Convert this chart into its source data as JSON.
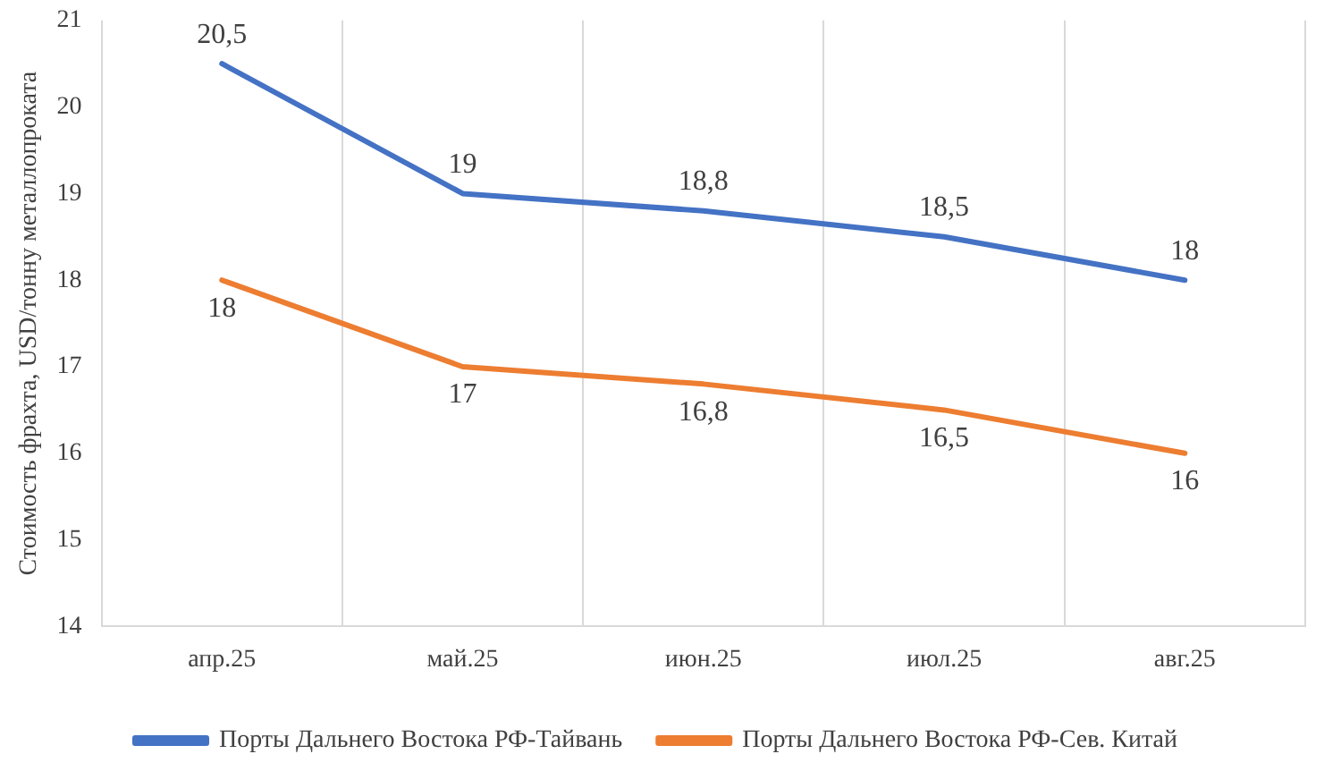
{
  "chart_data": {
    "type": "line",
    "ylabel": "Стоимость фрахта, USD/тонну металлопроката",
    "categories": [
      "апр.25",
      "май.25",
      "июн.25",
      "июл.25",
      "авг.25"
    ],
    "series": [
      {
        "name": "Порты Дальнего Востока РФ-Тайвань",
        "color": "#4472c4",
        "values": [
          20.5,
          19,
          18.8,
          18.5,
          18
        ],
        "value_labels": [
          "20,5",
          "19",
          "18,8",
          "18,5",
          "18"
        ]
      },
      {
        "name": "Порты Дальнего Востока РФ-Сев. Китай",
        "color": "#ed7d31",
        "values": [
          18,
          17,
          16.8,
          16.5,
          16
        ],
        "value_labels": [
          "18",
          "17",
          "16,8",
          "16,5",
          "16"
        ]
      }
    ],
    "ylim": [
      14,
      21
    ],
    "yticks": [
      14,
      15,
      16,
      17,
      18,
      19,
      20,
      21
    ],
    "grid": "x",
    "legend": "bottom",
    "marker": "none",
    "line_style": "solid"
  }
}
